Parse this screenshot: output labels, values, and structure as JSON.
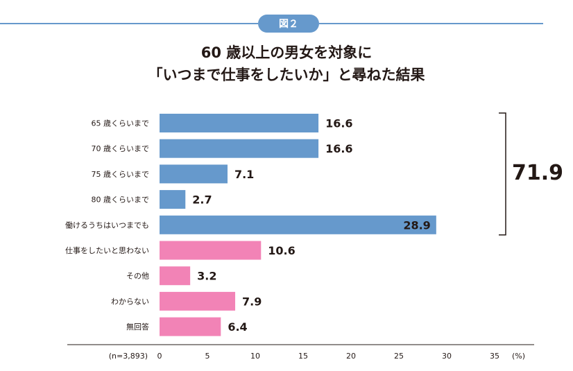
{
  "figure": {
    "badge": "図２",
    "title_lines": [
      "60 歳以上の男女を対象に",
      "「いつまで仕事をしたいか」と尋ねた結果"
    ],
    "sample_note": "(n=3,893)",
    "unit": "(%)"
  },
  "chart_data": {
    "type": "bar",
    "orientation": "horizontal",
    "categories": [
      "65 歳くらいまで",
      "70 歳くらいまで",
      "75 歳くらいまで",
      "80 歳くらいまで",
      "働けるうちはいつまでも",
      "仕事をしたいと思わない",
      "その他",
      "わからない",
      "無回答"
    ],
    "values": [
      16.6,
      16.6,
      7.1,
      2.7,
      28.9,
      10.6,
      3.2,
      7.9,
      6.4
    ],
    "value_labels": [
      "16.6",
      "16.6",
      "7.1",
      "2.7",
      "28.9",
      "10.6",
      "3.2",
      "7.9",
      "6.4"
    ],
    "bar_colors": [
      "#6699cc",
      "#6699cc",
      "#6699cc",
      "#6699cc",
      "#6699cc",
      "#f283b6",
      "#f283b6",
      "#f283b6",
      "#f283b6"
    ],
    "xlim": [
      0,
      35
    ],
    "xticks": [
      0,
      5,
      10,
      15,
      20,
      25,
      30,
      35
    ],
    "bracket": {
      "from_index": 0,
      "to_index": 4,
      "total_label": "71.9"
    },
    "grid": false
  },
  "colors": {
    "badge": "#6699cc",
    "rule": "#6699cc",
    "axis": "#231815"
  }
}
